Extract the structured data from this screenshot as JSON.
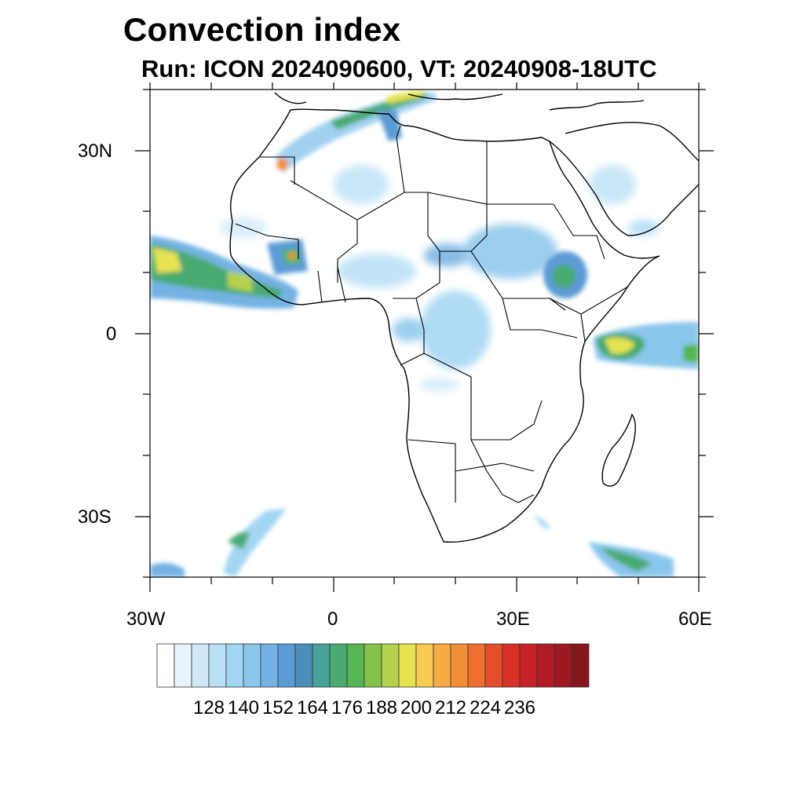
{
  "title": "Convection index",
  "subtitle": "Run: ICON 2024090600,  VT: 20240908-18UTC",
  "map": {
    "region": "Africa",
    "lon_range": [
      -30,
      60
    ],
    "lat_range": [
      -40,
      40
    ],
    "lat_tick_labels": [
      "30N",
      "0",
      "30S"
    ],
    "lon_tick_labels": [
      "30W",
      "0",
      "30E",
      "60E"
    ]
  },
  "colorbar": {
    "colors": [
      "#ffffff",
      "#e8f4fc",
      "#cfe9f8",
      "#b8e0f6",
      "#a2d6f3",
      "#8bc6ec",
      "#74b2e3",
      "#5c9bd5",
      "#4a8fba",
      "#48a29a",
      "#4aaa72",
      "#55b653",
      "#84c34a",
      "#b5d24e",
      "#e6e251",
      "#f8cb52",
      "#f6ab44",
      "#f38e38",
      "#ef6f2e",
      "#e54e2a",
      "#d93127",
      "#c82228",
      "#b21b26",
      "#9e1822",
      "#86161d"
    ],
    "labels": [
      "128",
      "140",
      "152",
      "164",
      "176",
      "188",
      "200",
      "212",
      "224",
      "236"
    ]
  }
}
